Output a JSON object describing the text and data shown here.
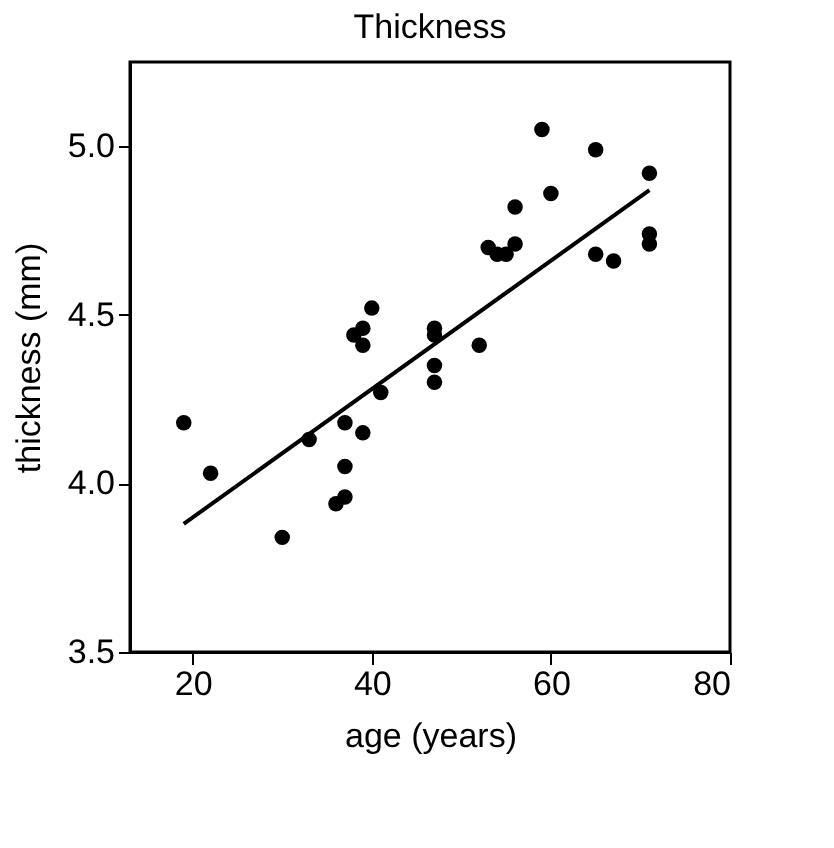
{
  "chart_data": {
    "type": "scatter",
    "title": "Thickness",
    "xlabel": "age (years)",
    "ylabel": "thickness (mm)",
    "xlim": [
      13,
      80
    ],
    "xticks": [
      20,
      40,
      60,
      80
    ],
    "ylim": [
      3.5,
      5.25
    ],
    "yticks": [
      {
        "value": 3.5,
        "label": "3.5"
      },
      {
        "value": 4.0,
        "label": "4.0"
      },
      {
        "value": 4.5,
        "label": "4.5"
      },
      {
        "value": 5.0,
        "label": "5.0"
      }
    ],
    "grid": false,
    "series": [
      {
        "marker": "circle",
        "color": "#000000",
        "x": [
          19,
          22,
          30,
          33,
          36,
          37,
          37,
          37,
          39,
          38,
          39,
          39,
          40,
          41,
          47,
          47,
          47,
          47,
          52,
          53,
          54,
          55,
          56,
          56,
          59,
          60,
          65,
          65,
          67,
          71,
          71,
          71
        ],
        "values": [
          4.18,
          4.03,
          3.84,
          4.13,
          3.94,
          3.96,
          4.05,
          4.18,
          4.15,
          4.44,
          4.46,
          4.41,
          4.52,
          4.27,
          4.46,
          4.44,
          4.35,
          4.3,
          4.41,
          4.7,
          4.68,
          4.68,
          4.71,
          4.82,
          5.05,
          4.86,
          4.99,
          4.68,
          4.66,
          4.92,
          4.74,
          4.71
        ]
      },
      {
        "type": "line",
        "marker": "none",
        "color": "#000000",
        "x": [
          19,
          71
        ],
        "values": [
          3.88,
          4.87
        ]
      }
    ]
  }
}
